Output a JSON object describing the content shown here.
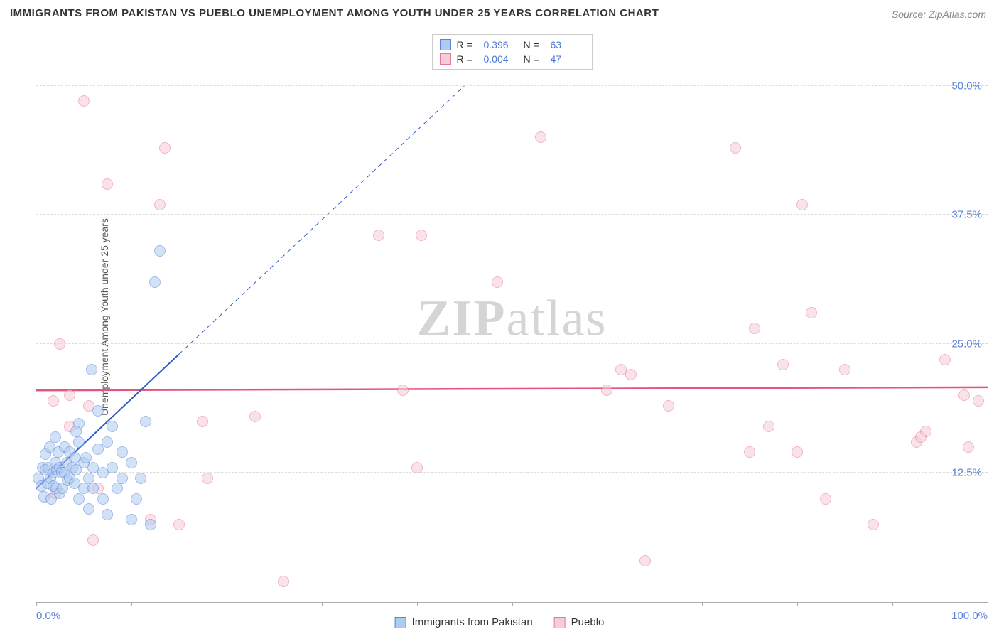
{
  "title": "IMMIGRANTS FROM PAKISTAN VS PUEBLO UNEMPLOYMENT AMONG YOUTH UNDER 25 YEARS CORRELATION CHART",
  "title_fontsize": 15,
  "source": "Source: ZipAtlas.com",
  "source_fontsize": 14,
  "y_axis_label": "Unemployment Among Youth under 25 years",
  "y_axis_fontsize": 14,
  "watermark": {
    "zip": "ZIP",
    "atlas": "atlas"
  },
  "chart": {
    "type": "scatter",
    "background_color": "#ffffff",
    "grid_color": "#dddddd",
    "axis_color": "#aaaaaa",
    "xlim": [
      0,
      100
    ],
    "ylim": [
      0,
      55
    ],
    "y_ticks": [
      {
        "value": 12.5,
        "label": "12.5%"
      },
      {
        "value": 25.0,
        "label": "25.0%"
      },
      {
        "value": 37.5,
        "label": "37.5%"
      },
      {
        "value": 50.0,
        "label": "50.0%"
      }
    ],
    "y_tick_color": "#5b83db",
    "y_tick_fontsize": 15,
    "x_ticks": [
      0,
      10,
      20,
      30,
      40,
      50,
      60,
      70,
      80,
      90,
      100
    ],
    "x_labels": [
      {
        "value": 0,
        "label": "0.0%"
      },
      {
        "value": 100,
        "label": "100.0%"
      }
    ],
    "x_label_color": "#5b83db",
    "x_label_fontsize": 15,
    "marker_radius": 8,
    "marker_opacity": 0.55,
    "series": [
      {
        "name": "Immigrants from Pakistan",
        "color_fill": "#aecbf0",
        "color_stroke": "#5b83db",
        "R": "0.396",
        "N": "63",
        "trend": {
          "x1": 0,
          "y1": 11,
          "x2": 15,
          "y2": 24,
          "dash_ext_x": 45,
          "dash_ext_y": 50,
          "stroke": "#2e5cc4",
          "width": 2
        },
        "points": [
          [
            0.2,
            12.0
          ],
          [
            0.5,
            11.2
          ],
          [
            0.7,
            13.0
          ],
          [
            0.8,
            10.2
          ],
          [
            1.0,
            12.8
          ],
          [
            1.0,
            14.3
          ],
          [
            1.2,
            11.5
          ],
          [
            1.3,
            13.0
          ],
          [
            1.4,
            15.0
          ],
          [
            1.5,
            12.0
          ],
          [
            1.6,
            10.0
          ],
          [
            1.8,
            11.2
          ],
          [
            1.8,
            12.5
          ],
          [
            2.0,
            16.0
          ],
          [
            2.0,
            13.5
          ],
          [
            2.1,
            11.0
          ],
          [
            2.2,
            12.8
          ],
          [
            2.3,
            14.5
          ],
          [
            2.5,
            13.0
          ],
          [
            2.5,
            10.5
          ],
          [
            2.7,
            12.5
          ],
          [
            2.8,
            11.0
          ],
          [
            3.0,
            15.0
          ],
          [
            3.0,
            12.5
          ],
          [
            3.2,
            13.5
          ],
          [
            3.3,
            11.8
          ],
          [
            3.5,
            14.5
          ],
          [
            3.5,
            12.0
          ],
          [
            3.8,
            13.0
          ],
          [
            4.0,
            11.5
          ],
          [
            4.0,
            14.0
          ],
          [
            4.2,
            12.8
          ],
          [
            4.5,
            15.5
          ],
          [
            4.5,
            17.3
          ],
          [
            4.5,
            10.0
          ],
          [
            5.0,
            13.5
          ],
          [
            5.0,
            11.0
          ],
          [
            5.2,
            14.0
          ],
          [
            5.5,
            12.0
          ],
          [
            5.5,
            9.0
          ],
          [
            6.0,
            13.0
          ],
          [
            6.0,
            11.0
          ],
          [
            6.5,
            14.8
          ],
          [
            6.5,
            18.5
          ],
          [
            7.0,
            10.0
          ],
          [
            7.0,
            12.5
          ],
          [
            7.5,
            8.5
          ],
          [
            8.0,
            13.0
          ],
          [
            8.0,
            17.0
          ],
          [
            8.5,
            11.0
          ],
          [
            9.0,
            14.5
          ],
          [
            9.0,
            12.0
          ],
          [
            10.0,
            8.0
          ],
          [
            10.0,
            13.5
          ],
          [
            10.5,
            10.0
          ],
          [
            11.0,
            12.0
          ],
          [
            12.0,
            7.5
          ],
          [
            5.8,
            22.5
          ],
          [
            11.5,
            17.5
          ],
          [
            12.5,
            31.0
          ],
          [
            13.0,
            34.0
          ],
          [
            7.5,
            15.5
          ],
          [
            4.2,
            16.5
          ]
        ]
      },
      {
        "name": "Pueblo",
        "color_fill": "#f6cdd6",
        "color_stroke": "#e67a94",
        "R": "0.004",
        "N": "47",
        "trend": {
          "x1": 0,
          "y1": 20.5,
          "x2": 100,
          "y2": 20.8,
          "stroke": "#e5547b",
          "width": 2.5
        },
        "points": [
          [
            3.5,
            20.0
          ],
          [
            1.8,
            19.5
          ],
          [
            5.0,
            48.5
          ],
          [
            7.5,
            40.5
          ],
          [
            13.5,
            44.0
          ],
          [
            13.0,
            38.5
          ],
          [
            12.0,
            8.0
          ],
          [
            2.5,
            25.0
          ],
          [
            15.0,
            7.5
          ],
          [
            2.0,
            10.5
          ],
          [
            6.0,
            6.0
          ],
          [
            6.5,
            11.0
          ],
          [
            17.5,
            17.5
          ],
          [
            18.0,
            12.0
          ],
          [
            3.5,
            17.0
          ],
          [
            23.0,
            18.0
          ],
          [
            26.0,
            2.0
          ],
          [
            5.5,
            19.0
          ],
          [
            36.0,
            35.5
          ],
          [
            38.5,
            20.5
          ],
          [
            40.5,
            35.5
          ],
          [
            40.0,
            13.0
          ],
          [
            48.5,
            31.0
          ],
          [
            60.0,
            20.5
          ],
          [
            61.5,
            22.5
          ],
          [
            62.5,
            22.0
          ],
          [
            53.0,
            45.0
          ],
          [
            64.0,
            4.0
          ],
          [
            66.5,
            19.0
          ],
          [
            73.5,
            44.0
          ],
          [
            75.0,
            14.5
          ],
          [
            75.5,
            26.5
          ],
          [
            77.0,
            17.0
          ],
          [
            78.5,
            23.0
          ],
          [
            80.5,
            38.5
          ],
          [
            80.0,
            14.5
          ],
          [
            81.5,
            28.0
          ],
          [
            83.0,
            10.0
          ],
          [
            85.0,
            22.5
          ],
          [
            88.0,
            7.5
          ],
          [
            92.5,
            15.5
          ],
          [
            93.0,
            16.0
          ],
          [
            93.5,
            16.5
          ],
          [
            95.5,
            23.5
          ],
          [
            97.5,
            20.0
          ],
          [
            98.0,
            15.0
          ],
          [
            99.0,
            19.5
          ]
        ]
      }
    ]
  },
  "legend_top": {
    "R_label": "R =",
    "N_label": "N ="
  },
  "legend_bottom": [
    "Immigrants from Pakistan",
    "Pueblo"
  ]
}
